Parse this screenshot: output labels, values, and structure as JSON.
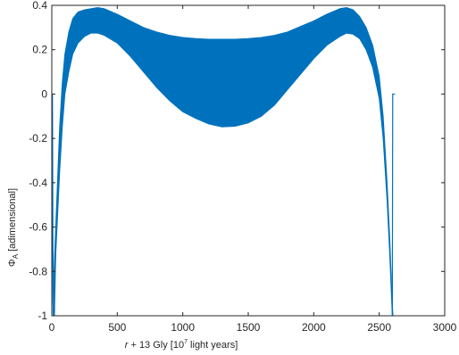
{
  "chart_data": {
    "type": "area",
    "title": "",
    "xlabel_italic": "r",
    "xlabel_rest": " + 13 Gly [10",
    "xlabel_sup": "7",
    "xlabel_end": " light years]",
    "ylabel_main": "Φ",
    "ylabel_sub": "A",
    "ylabel_rest": " [adimensional]",
    "xlim": [
      0,
      3000
    ],
    "ylim": [
      -1,
      0.4
    ],
    "xticks": [
      0,
      500,
      1000,
      1500,
      2000,
      2500,
      3000
    ],
    "yticks": [
      -1,
      -0.8,
      -0.6,
      -0.4,
      -0.2,
      0,
      0.2,
      0.4
    ],
    "xtick_labels": [
      "0",
      "500",
      "1000",
      "1500",
      "2000",
      "2500",
      "3000"
    ],
    "ytick_labels": [
      "-1",
      "-0.8",
      "-0.6",
      "-0.4",
      "-0.2",
      "0",
      "0.2",
      "0.4"
    ],
    "grid": false,
    "color": "#0072BD",
    "band": {
      "x": [
        0,
        10,
        20,
        40,
        60,
        80,
        100,
        130,
        160,
        200,
        250,
        300,
        350,
        400,
        500,
        600,
        700,
        800,
        900,
        1000,
        1100,
        1200,
        1300,
        1400,
        1500,
        1600,
        1700,
        1800,
        1900,
        2000,
        2100,
        2200,
        2250,
        2300,
        2350,
        2400,
        2450,
        2500,
        2530,
        2560,
        2580,
        2600,
        2605
      ],
      "upper": [
        0.0,
        -0.95,
        -0.75,
        -0.45,
        -0.15,
        0.05,
        0.18,
        0.28,
        0.34,
        0.37,
        0.38,
        0.385,
        0.39,
        0.385,
        0.36,
        0.33,
        0.3,
        0.28,
        0.265,
        0.255,
        0.25,
        0.247,
        0.247,
        0.247,
        0.25,
        0.255,
        0.265,
        0.28,
        0.305,
        0.33,
        0.36,
        0.385,
        0.39,
        0.38,
        0.35,
        0.3,
        0.22,
        0.08,
        -0.1,
        -0.4,
        -0.65,
        -0.95,
        -1.0
      ],
      "lower": [
        0.0,
        -1.0,
        -0.85,
        -0.6,
        -0.35,
        -0.15,
        0.0,
        0.1,
        0.18,
        0.23,
        0.26,
        0.275,
        0.275,
        0.265,
        0.23,
        0.17,
        0.1,
        0.03,
        -0.03,
        -0.08,
        -0.11,
        -0.135,
        -0.148,
        -0.145,
        -0.13,
        -0.1,
        -0.05,
        0.02,
        0.09,
        0.16,
        0.22,
        0.26,
        0.275,
        0.27,
        0.25,
        0.2,
        0.12,
        -0.02,
        -0.2,
        -0.48,
        -0.72,
        -1.0,
        -1.0
      ]
    },
    "segments": [
      {
        "x": [
          5,
          10,
          20,
          30
        ],
        "y": [
          0.0,
          -0.95,
          -1.0,
          -0.7
        ]
      },
      {
        "x": [
          2600,
          2603,
          2610,
          2620
        ],
        "y": [
          -1.0,
          0.0,
          0.0,
          0.0
        ]
      }
    ]
  }
}
